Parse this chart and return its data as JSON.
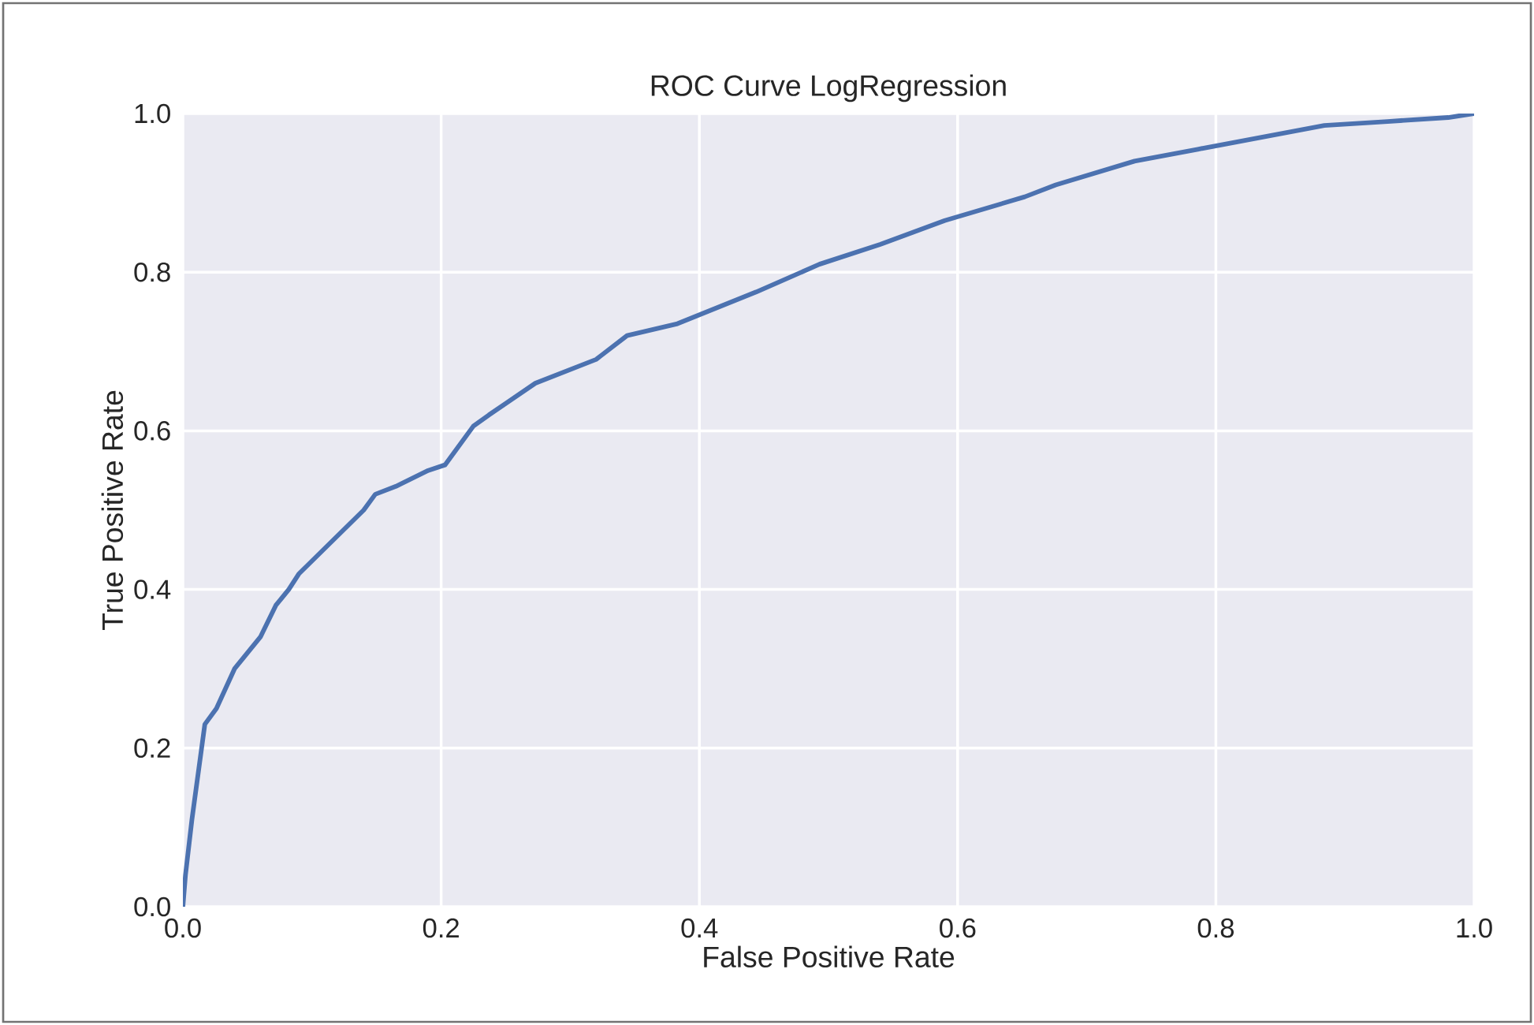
{
  "chart_data": {
    "type": "line",
    "title": "ROC Curve LogRegression",
    "xlabel": "False Positive Rate",
    "ylabel": "True Positive Rate",
    "xlim": [
      0,
      1
    ],
    "ylim": [
      0,
      1
    ],
    "xticks": [
      {
        "value": 0,
        "label": "0.0"
      },
      0.2,
      0.4,
      0.6,
      0.8,
      {
        "value": 1,
        "label": "1.0"
      }
    ],
    "yticks": [
      {
        "value": 0,
        "label": "0.0"
      },
      0.2,
      0.4,
      0.6,
      0.8,
      {
        "value": 1,
        "label": "1.0"
      }
    ],
    "grid": true,
    "marker": "none",
    "line_style": "solid",
    "series": [
      {
        "color": "#4c72b0",
        "x": [
          0,
          0.002,
          0.007,
          0.012,
          0.017,
          0.026,
          0.04,
          0.06,
          0.072,
          0.082,
          0.09,
          0.115,
          0.14,
          0.149,
          0.165,
          0.19,
          0.203,
          0.225,
          0.237,
          0.273,
          0.32,
          0.344,
          0.383,
          0.444,
          0.493,
          0.54,
          0.59,
          0.652,
          0.676,
          0.737,
          0.786,
          0.835,
          0.884,
          0.933,
          0.98,
          1
        ],
        "values": [
          0,
          0.04,
          0.11,
          0.17,
          0.23,
          0.25,
          0.3,
          0.34,
          0.38,
          0.4,
          0.42,
          0.46,
          0.5,
          0.52,
          0.53,
          0.55,
          0.557,
          0.606,
          0.62,
          0.66,
          0.69,
          0.72,
          0.735,
          0.775,
          0.81,
          0.835,
          0.865,
          0.895,
          0.91,
          0.94,
          0.955,
          0.97,
          0.985,
          0.99,
          0.995,
          1
        ]
      }
    ]
  }
}
